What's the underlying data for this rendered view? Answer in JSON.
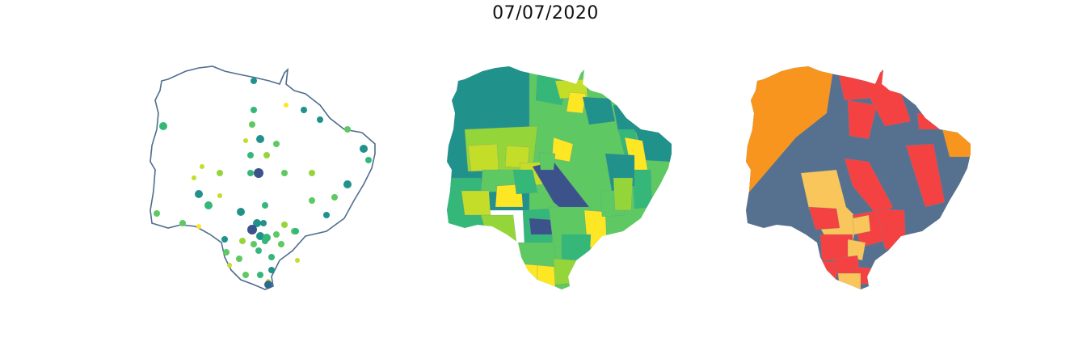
{
  "title": "07/07/2020",
  "colors": {
    "outline": "#4f6d8f",
    "viridis": [
      "#fde725",
      "#c4dd28",
      "#94d63a",
      "#5ec962",
      "#35b779",
      "#21918c",
      "#31688e",
      "#3b528b"
    ],
    "risk": [
      "#56718f",
      "#f8c65a",
      "#f7951f",
      "#f44242"
    ],
    "border": "#6f879f"
  },
  "panels": [
    {
      "id": "map-points",
      "type": "point-map"
    },
    {
      "id": "map-choropleth-viridis",
      "type": "choropleth"
    },
    {
      "id": "map-choropleth-risk",
      "type": "choropleth"
    }
  ]
}
